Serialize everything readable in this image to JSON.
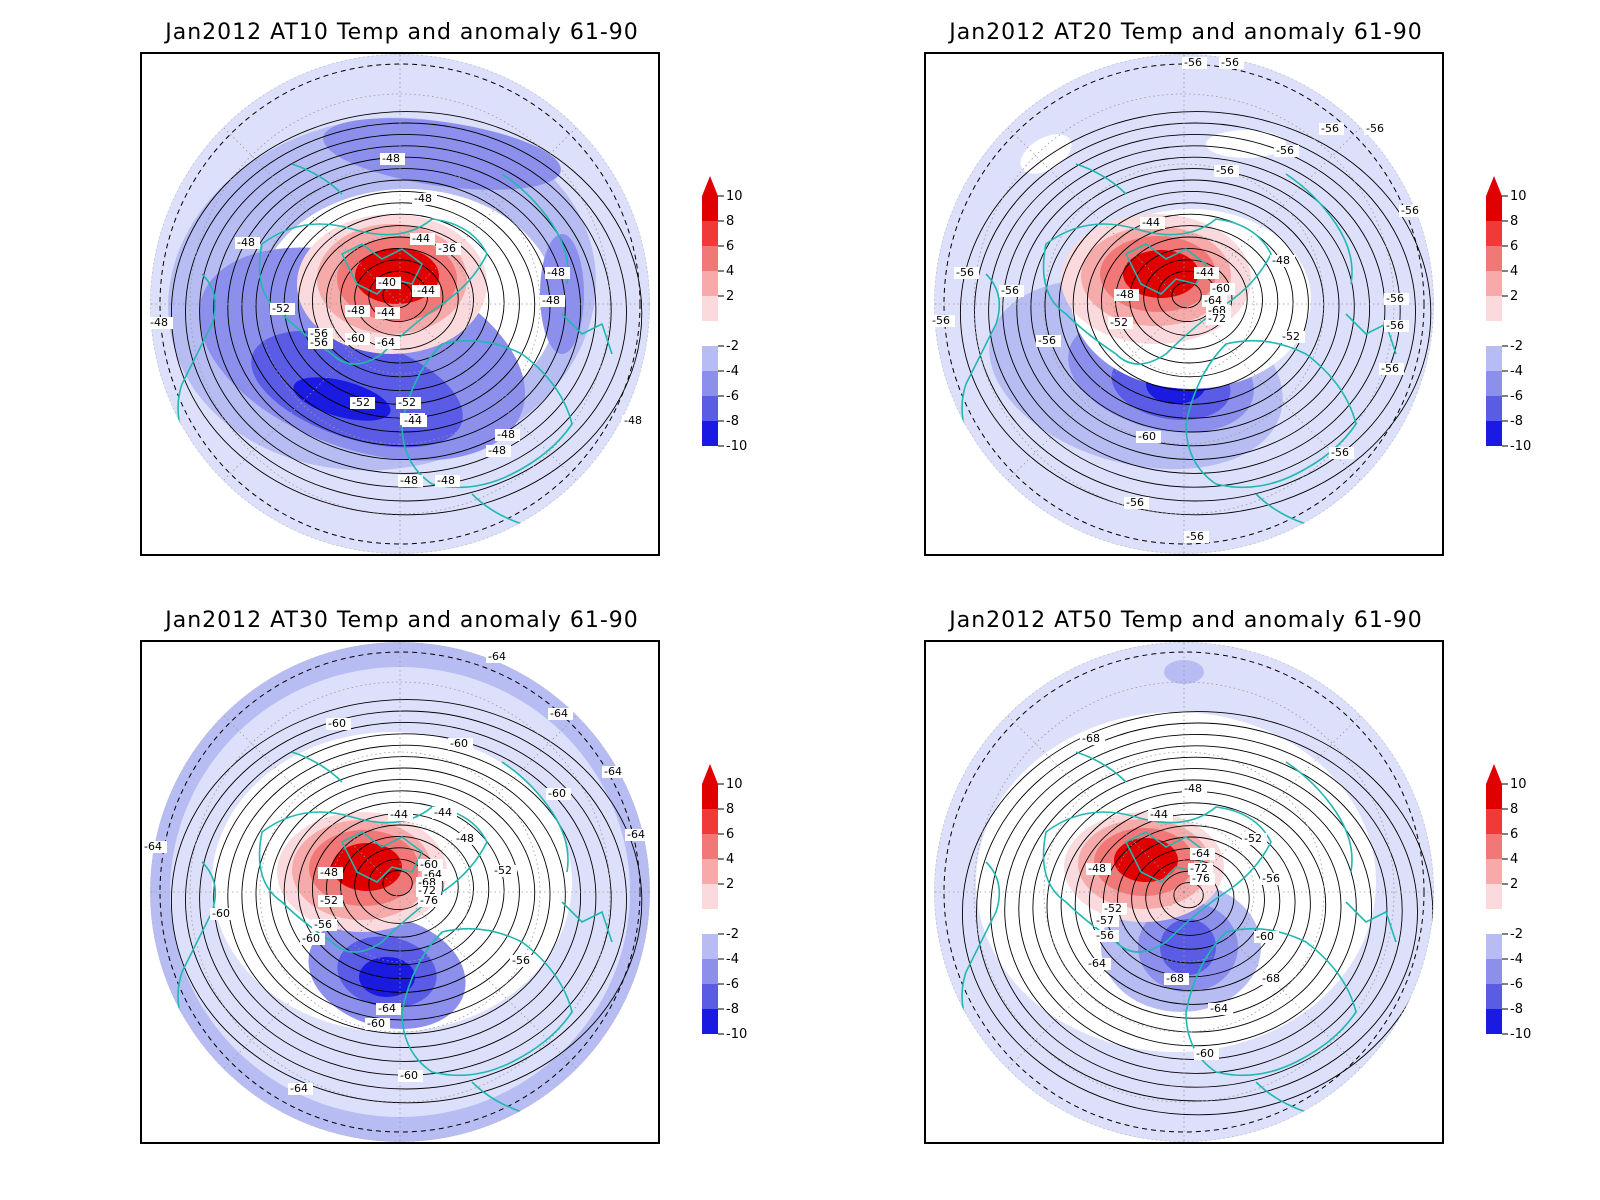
{
  "panels": [
    {
      "title": "Jan2012 AT10 Temp and anomaly 61-90",
      "contour_labels": [
        "-48",
        "-48",
        "-48",
        "-48",
        "-48",
        "-48",
        "-48",
        "-48",
        "-48",
        "-48",
        "-48",
        "-48",
        "-44",
        "-44",
        "-40",
        "-40",
        "-36",
        "-44",
        "-44",
        "-48",
        "-52",
        "-56",
        "-60",
        "-64",
        "-52",
        "-56",
        "-52"
      ]
    },
    {
      "title": "Jan2012 AT20 Temp and anomaly 61-90",
      "contour_labels": [
        "-56",
        "-56",
        "-56",
        "-56",
        "-56",
        "-56",
        "-56",
        "-56",
        "-56",
        "-56",
        "-56",
        "-56",
        "-56",
        "-44",
        "-44",
        "-48",
        "-60",
        "-64",
        "-68",
        "-72",
        "-52",
        "-48",
        "-52",
        "-56",
        "-60",
        "-56",
        "-56",
        "-56"
      ]
    },
    {
      "title": "Jan2012 AT30 Temp and anomaly 61-90",
      "contour_labels": [
        "-64",
        "-64",
        "-64",
        "-64",
        "-64",
        "-60",
        "-60",
        "-60",
        "-44",
        "-44",
        "-48",
        "-60",
        "-64",
        "-68",
        "-72",
        "-76",
        "-52",
        "-48",
        "-52",
        "-56",
        "-60",
        "-60",
        "-56",
        "-64",
        "-60",
        "-60",
        "-64"
      ]
    },
    {
      "title": "Jan2012 AT50 Temp and anomaly 61-90",
      "contour_labels": [
        "-68",
        "-48",
        "-44",
        "-52",
        "-64",
        "-72",
        "-76",
        "-56",
        "-48",
        "-52",
        "-57",
        "-56",
        "-60",
        "-64",
        "-68",
        "-64",
        "-60",
        "-68"
      ]
    }
  ],
  "colorbar": {
    "labels": [
      "10",
      "8",
      "6",
      "4",
      "2",
      "-2",
      "-4",
      "-6",
      "-8",
      "-10"
    ],
    "colors": [
      "#e00000",
      "#f03a3a",
      "#f27878",
      "#f6aaaa",
      "#fadadc",
      "#ffffff",
      "#dde0fa",
      "#b7bcf2",
      "#8c90ec",
      "#5a5ce6",
      "#1a1ae0"
    ]
  }
}
